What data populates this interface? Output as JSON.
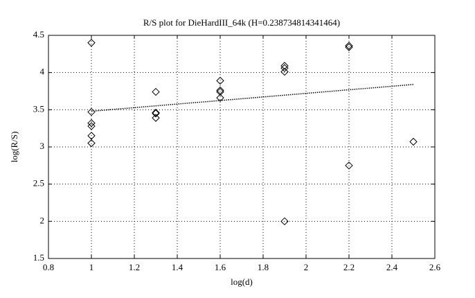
{
  "chart_data": {
    "type": "scatter",
    "title": "R/S plot for DieHardIII_64k (H=0.238734814341464)",
    "xlabel": "log(d)",
    "ylabel": "log(R/S)",
    "x": [
      1,
      1,
      1,
      1,
      1,
      1,
      1.3,
      1.3,
      1.3,
      1.3,
      1.6,
      1.6,
      1.6,
      1.6,
      1.9,
      1.9,
      1.9,
      1.9,
      2.2,
      2.2,
      2.2,
      2.5
    ],
    "values": [
      4.4,
      3.47,
      3.32,
      3.28,
      3.15,
      3.05,
      3.74,
      3.46,
      3.45,
      3.39,
      3.89,
      3.76,
      3.74,
      3.66,
      4.09,
      4.06,
      4.01,
      2.0,
      4.36,
      4.34,
      2.75,
      3.07
    ],
    "color": "#000000",
    "fit": {
      "x": [
        1,
        2.5
      ],
      "values": [
        3.48,
        3.84
      ]
    },
    "xlim": [
      0.8,
      2.6
    ],
    "xticks": [
      0.8,
      1,
      1.2,
      1.4,
      1.6,
      1.8,
      2,
      2.2,
      2.4,
      2.6
    ],
    "ylim": [
      1.5,
      4.5
    ],
    "yticks": [
      1.5,
      2,
      2.5,
      3,
      3.5,
      4,
      4.5
    ],
    "grid": true
  }
}
